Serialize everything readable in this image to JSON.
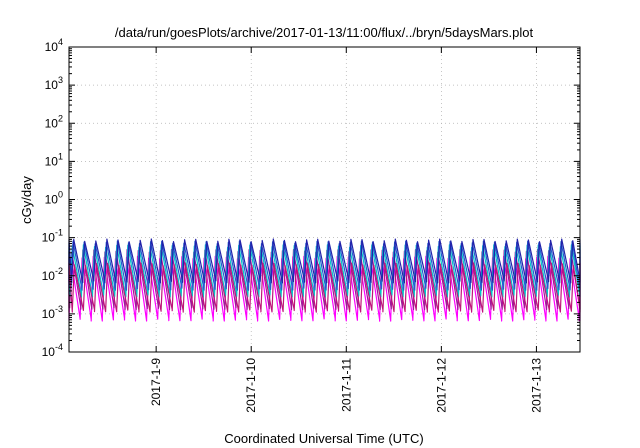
{
  "chart_data": {
    "type": "line",
    "title": "/data/run/goesPlots/archive/2017-01-13/11:00/flux/../bryn/5daysMars.plot",
    "xlabel": "Coordinated Universal Time (UTC)",
    "ylabel": "cGy/day",
    "y_scale": "log",
    "ylim": [
      0.0001,
      10000
    ],
    "y_ticks": [
      {
        "base": "10",
        "exp": "4"
      },
      {
        "base": "10",
        "exp": "3"
      },
      {
        "base": "10",
        "exp": "2"
      },
      {
        "base": "10",
        "exp": "1"
      },
      {
        "base": "10",
        "exp": "0"
      },
      {
        "base": "10",
        "exp": "-1"
      },
      {
        "base": "10",
        "exp": "-2"
      },
      {
        "base": "10",
        "exp": "-3"
      },
      {
        "base": "10",
        "exp": "-4"
      }
    ],
    "xlim": [
      "2017-01-08T02:00",
      "2017-01-13T11:00"
    ],
    "x_ticks": [
      "2017-1-9",
      "2017-1-10",
      "2017-1-11",
      "2017-1-12",
      "2017-1-13"
    ],
    "grid": true,
    "legend": "none",
    "oscillation_period_hours": 2.8,
    "series": [
      {
        "color": "#ff00ff",
        "peak": 0.03,
        "trough": 0.0007
      },
      {
        "color": "#a0179a",
        "peak": 0.045,
        "trough": 0.0014
      },
      {
        "color": "#00c7c7",
        "peak": 0.06,
        "trough": 0.003
      },
      {
        "color": "#1f5fd0",
        "peak": 0.075,
        "trough": 0.0045
      },
      {
        "color": "#2222aa",
        "peak": 0.085,
        "trough": 0.007
      },
      {
        "color": "#c0147a",
        "peak": 0.02,
        "trough": 0.0012
      }
    ]
  }
}
